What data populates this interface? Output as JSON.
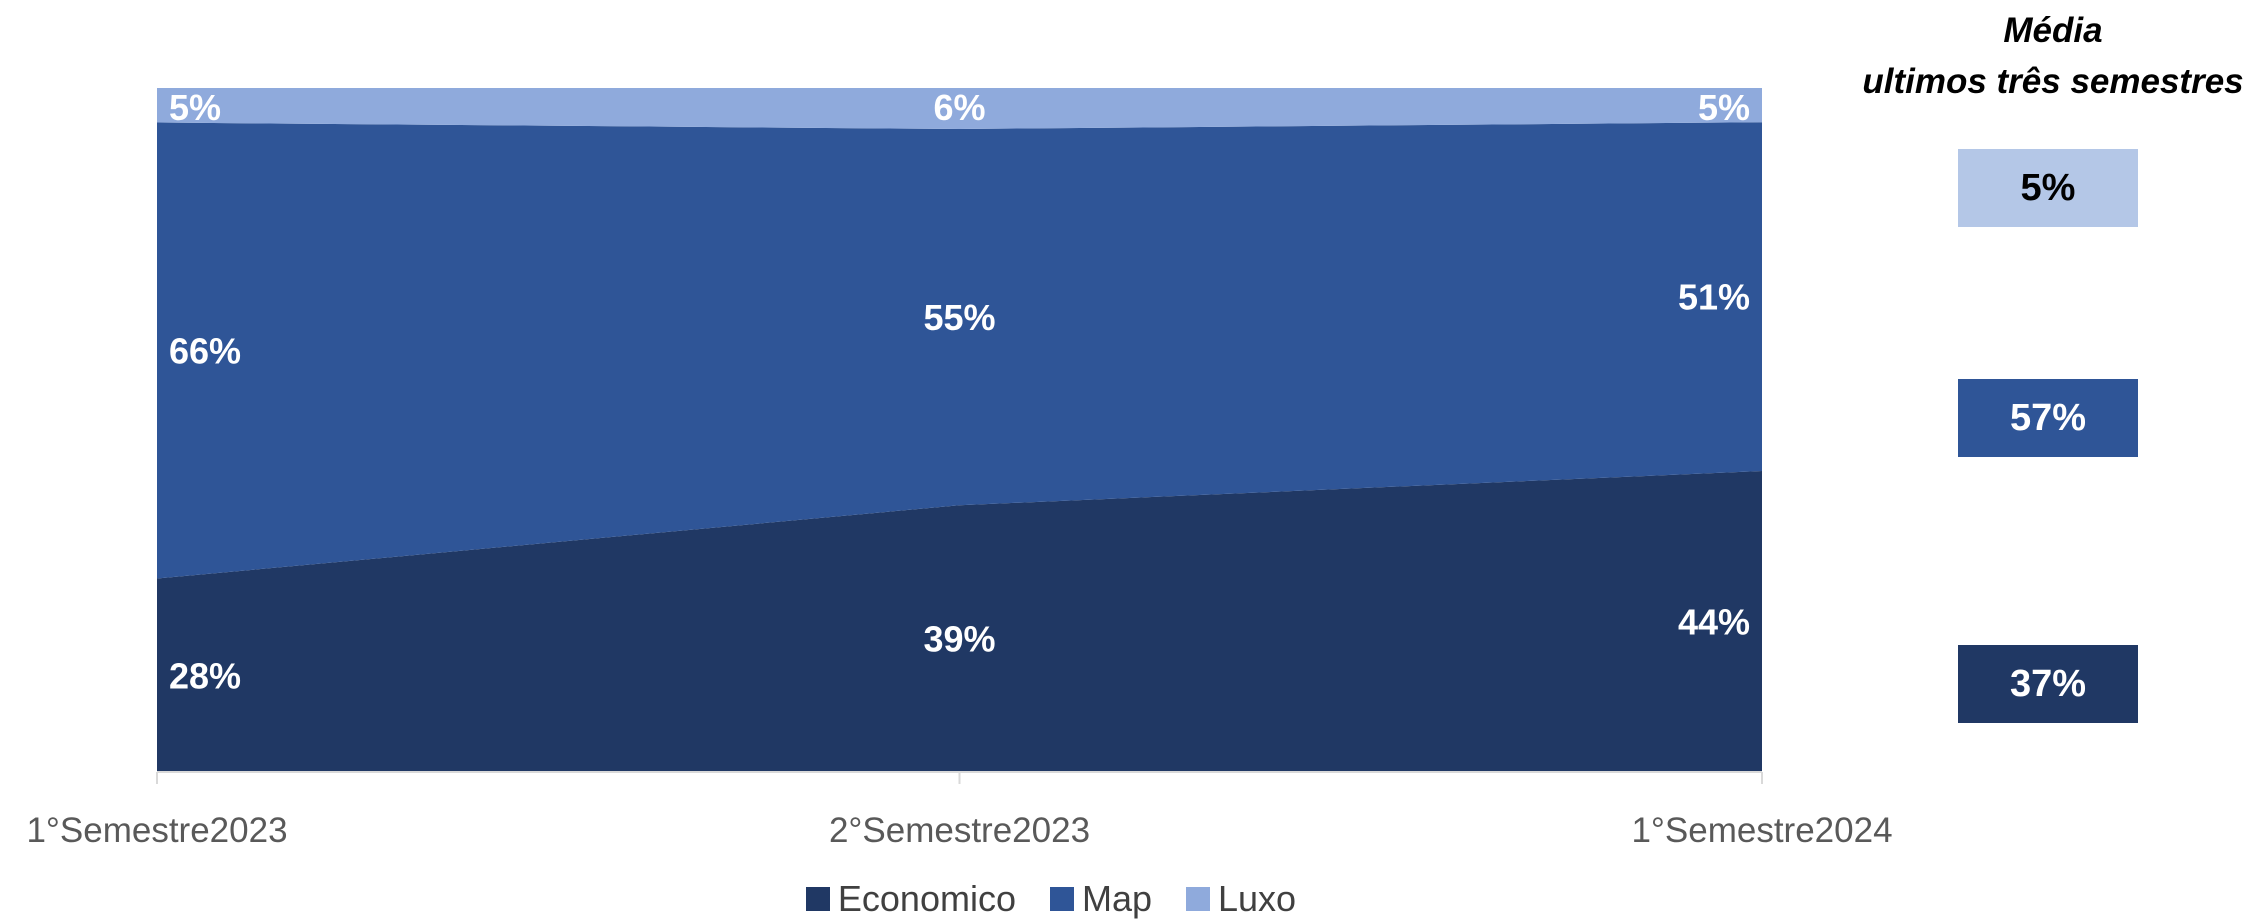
{
  "chart_data": {
    "type": "area",
    "stacked": true,
    "percent": true,
    "categories": [
      "1°Semestre2023",
      "2°Semestre2023",
      "1°Semestre2024"
    ],
    "series": [
      {
        "name": "Economico",
        "values": [
          28,
          39,
          44
        ],
        "labels": [
          "28%",
          "39%",
          "44%"
        ],
        "color": "#203864"
      },
      {
        "name": "Map",
        "values": [
          66,
          55,
          51
        ],
        "labels": [
          "66%",
          "55%",
          "51%"
        ],
        "color": "#2f5597"
      },
      {
        "name": "Luxo",
        "values": [
          5,
          6,
          5
        ],
        "labels": [
          "5%",
          "6%",
          "5%"
        ],
        "color": "#8faadc"
      }
    ],
    "ylim": [
      0,
      100
    ],
    "grid": false,
    "legend": "bottom"
  },
  "average": {
    "title_line1": "Média",
    "title_line2": "ultimos três semestres",
    "items": [
      {
        "series": "Luxo",
        "label": "5%",
        "bg": "#b4c7e7",
        "fg": "#000000"
      },
      {
        "series": "Map",
        "label": "57%",
        "bg": "#2f5597",
        "fg": "#ffffff"
      },
      {
        "series": "Economico",
        "label": "37%",
        "bg": "#203864",
        "fg": "#ffffff"
      }
    ]
  }
}
